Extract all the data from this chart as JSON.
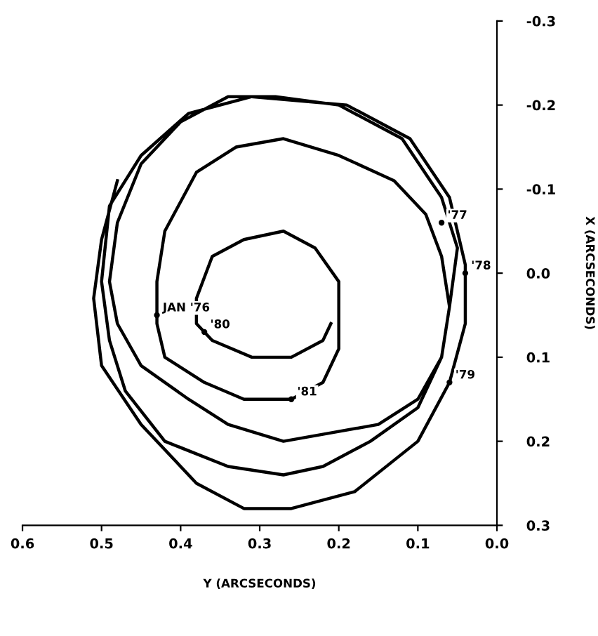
{
  "chart_data": {
    "type": "line",
    "xlabel": "Y (ARCSECONDS)",
    "ylabel": "X (ARCSECONDS)",
    "xlim": [
      0.6,
      0.0
    ],
    "xticks": [
      0.6,
      0.5,
      0.4,
      0.3,
      0.2,
      0.1,
      {
        "value": 0.0,
        "label": "0.0"
      }
    ],
    "ylim": [
      0.3,
      -0.3
    ],
    "yticks": [
      -0.3,
      -0.2,
      -0.1,
      {
        "value": 0.0,
        "label": "0.0"
      },
      0.1,
      0.2,
      0.3
    ],
    "marker": "none",
    "line_style": "solid",
    "series": [
      {
        "color": "#000000",
        "x": [
          0.21,
          0.22,
          0.26,
          0.31,
          0.36,
          0.38,
          0.38,
          0.36,
          0.32,
          0.27,
          0.23,
          0.2,
          0.2,
          0.2,
          0.22,
          0.26,
          0.32,
          0.37,
          0.42,
          0.43,
          0.43,
          0.42,
          0.38,
          0.33,
          0.27,
          0.2,
          0.13,
          0.09,
          0.07,
          0.06,
          0.07,
          0.1,
          0.15,
          0.21,
          0.27,
          0.34,
          0.39,
          0.45,
          0.48,
          0.49,
          0.48,
          0.45,
          0.4,
          0.34,
          0.28,
          0.2,
          0.12,
          0.07,
          0.05,
          0.06,
          0.07,
          0.1,
          0.16,
          0.22,
          0.27,
          0.34,
          0.42,
          0.47,
          0.49,
          0.5,
          0.49,
          0.45,
          0.39,
          0.31,
          0.19,
          0.11,
          0.06,
          0.04,
          0.04,
          0.06,
          0.1,
          0.18,
          0.26,
          0.32,
          0.38,
          0.45,
          0.5,
          0.51,
          0.5,
          0.48
        ],
        "values": [
          0.06,
          0.08,
          0.1,
          0.1,
          0.08,
          0.06,
          0.03,
          -0.02,
          -0.04,
          -0.05,
          -0.03,
          0.01,
          0.05,
          0.09,
          0.13,
          0.15,
          0.15,
          0.13,
          0.1,
          0.06,
          0.01,
          -0.05,
          -0.12,
          -0.15,
          -0.16,
          -0.14,
          -0.11,
          -0.07,
          -0.02,
          0.04,
          0.1,
          0.15,
          0.18,
          0.19,
          0.2,
          0.18,
          0.15,
          0.11,
          0.06,
          0.01,
          -0.06,
          -0.13,
          -0.18,
          -0.21,
          -0.21,
          -0.2,
          -0.16,
          -0.09,
          -0.03,
          0.04,
          0.1,
          0.16,
          0.2,
          0.23,
          0.24,
          0.23,
          0.2,
          0.14,
          0.08,
          0.01,
          -0.08,
          -0.14,
          -0.19,
          -0.21,
          -0.2,
          -0.16,
          -0.09,
          -0.01,
          0.06,
          0.13,
          0.2,
          0.26,
          0.28,
          0.28,
          0.25,
          0.18,
          0.11,
          0.03,
          -0.04,
          -0.11
        ]
      }
    ],
    "annotations": [
      {
        "text": "JAN '76",
        "x": 0.43,
        "y": 0.05
      },
      {
        "text": "'77",
        "x": 0.07,
        "y": -0.06
      },
      {
        "text": "'78",
        "x": 0.04,
        "y": 0.0
      },
      {
        "text": "'79",
        "x": 0.06,
        "y": 0.13
      },
      {
        "text": "'80",
        "x": 0.37,
        "y": 0.07
      },
      {
        "text": "'81",
        "x": 0.26,
        "y": 0.15
      }
    ]
  }
}
